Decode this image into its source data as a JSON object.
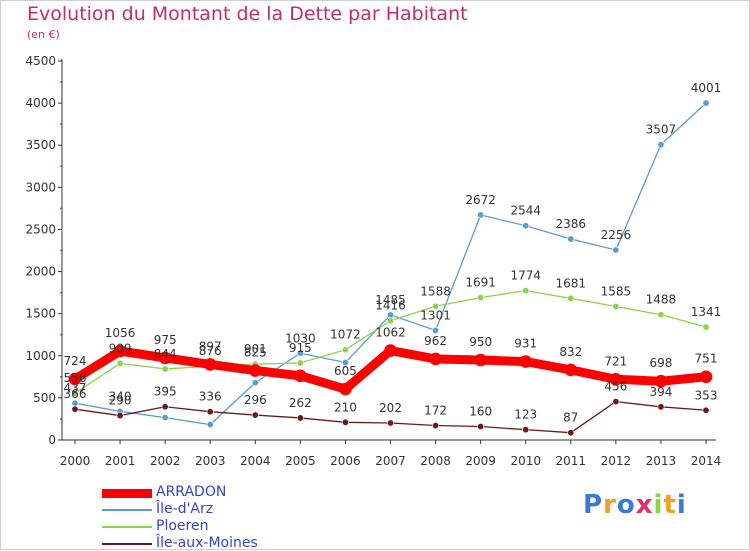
{
  "chart_data": {
    "type": "line",
    "title": "Evolution du Montant de la Dette par Habitant",
    "subtitle": "(en €)",
    "ylim": [
      0,
      4500
    ],
    "yticks": [
      0,
      500,
      1000,
      1500,
      2000,
      2500,
      3000,
      3500,
      4000,
      4500
    ],
    "x": [
      "2000",
      "2001",
      "2002",
      "2003",
      "2004",
      "2005",
      "2006",
      "2007",
      "2008",
      "2009",
      "2010",
      "2011",
      "2012",
      "2013",
      "2014"
    ],
    "grid": false,
    "legend_position": "bottom-left",
    "series": [
      {
        "name": "ARRADON",
        "color": "#ff0000",
        "values": [
          724,
          1056,
          975,
          897,
          825,
          762,
          605,
          1062,
          962,
          950,
          931,
          832,
          721,
          698,
          751
        ],
        "labels": [
          true,
          true,
          true,
          true,
          true,
          false,
          true,
          true,
          true,
          true,
          true,
          true,
          true,
          true,
          true
        ]
      },
      {
        "name": "Île-d'Arz",
        "color": "#5b9bd5",
        "values": [
          437,
          340,
          266,
          183,
          681,
          1030,
          920,
          1485,
          1301,
          2672,
          2544,
          2386,
          2256,
          3507,
          4001
        ],
        "labels": [
          true,
          true,
          false,
          false,
          false,
          true,
          false,
          true,
          true,
          true,
          true,
          true,
          true,
          true,
          true
        ]
      },
      {
        "name": "Ploeren",
        "color": "#8ed24b",
        "values": [
          556,
          909,
          844,
          876,
          901,
          915,
          1072,
          1416,
          1588,
          1691,
          1774,
          1681,
          1585,
          1488,
          1341
        ],
        "labels": [
          true,
          true,
          true,
          true,
          true,
          true,
          true,
          true,
          true,
          true,
          true,
          true,
          true,
          true,
          true
        ]
      },
      {
        "name": "Île-aux-Moines",
        "color": "#6b1a1a",
        "values": [
          366,
          290,
          395,
          336,
          296,
          262,
          210,
          202,
          172,
          160,
          123,
          87,
          456,
          394,
          353
        ],
        "labels": [
          true,
          true,
          true,
          true,
          true,
          true,
          true,
          true,
          true,
          true,
          true,
          true,
          true,
          true,
          true
        ]
      }
    ]
  },
  "legend": {
    "items": [
      {
        "label": "ARRADON",
        "color": "#ff0000"
      },
      {
        "label": "Île-d'Arz",
        "color": "#5b9bd5"
      },
      {
        "label": "Ploeren",
        "color": "#8ed24b"
      },
      {
        "label": "Île-aux-Moines",
        "color": "#6b1a1a"
      }
    ]
  },
  "logo": {
    "text": "Proxiti"
  }
}
